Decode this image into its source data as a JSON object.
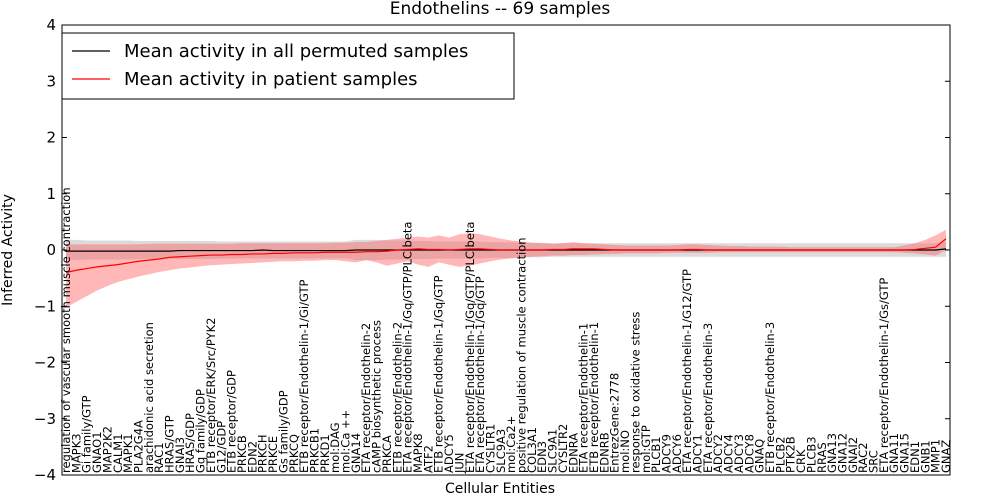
{
  "chart_data": {
    "type": "line",
    "title": "Endothelins -- 69 samples",
    "xlabel": "Cellular Entities",
    "ylabel": "Inferred Activity",
    "ylim": [
      -4,
      4
    ],
    "yticks": [
      -4,
      -3,
      -2,
      -1,
      0,
      1,
      2,
      3,
      4
    ],
    "legend_position": "top-left",
    "grid": false,
    "categories": [
      "regulation of vascular smooth muscle contraction",
      "MAPK3",
      "Gi family/GTP",
      "GNAO1",
      "MAP2K2",
      "CALM1",
      "MAPK1",
      "PLA2G4A",
      "arachidonic acid secretion",
      "RAC1",
      "HRAS/GTP",
      "GNAI3",
      "HRAS/GDP",
      "Gq family/GDP",
      "ETB receptor/ERK/Src/PYK2",
      "G12/GDP",
      "ETB receptor/GDP",
      "PRKCB",
      "EDN2",
      "PRKCH",
      "PRKCE",
      "Gs family/GDP",
      "PRKCQ",
      "ETB receptor/Endothelin-1/Gi/GTP",
      "PRKCB1",
      "PRKD1",
      "mol:DAG",
      "mol:Ca ++",
      "GNA14",
      "ETA receptor/Endothelin-2",
      "cAMP biosynthetic process",
      "PRKCA",
      "ETB receptor/Endothelin-2",
      "ETA receptor/Endothelin-1/Gq/GTP/PLC beta",
      "MAPK8",
      "ATF2",
      "ETB receptor/Endothelin-1/Gq/GTP",
      "ADCY5",
      "JUN",
      "ETA receptor/Endothelin-1/Gq/GTP/PLC beta",
      "ETA receptor/Endothelin-1/Gq/GTP",
      "CYSLTR1",
      "SLC9A3",
      "mol:Ca2+",
      "positive regulation of muscle contraction",
      "COL3A1",
      "EDN3",
      "SLC9A1",
      "CYSLTR2",
      "EDNRA",
      "ETA receptor/Endothelin-1",
      "ETB receptor/Endothelin-1",
      "EDNRB",
      "EntrezGene:2778",
      "mol:NO",
      "response to oxidative stress",
      "mol:GTP",
      "PLCB1",
      "ADCY9",
      "ADCY6",
      "ETA receptor/Endothelin-1/G12/GTP",
      "ADCY1",
      "ETA receptor/Endothelin-3",
      "ADCY2",
      "ADCY4",
      "ADCY3",
      "ADCY8",
      "GNAQ",
      "ETB receptor/Endothelin-3",
      "PLCB2",
      "PTK2B",
      "CRK",
      "PLCB3",
      "RRAS",
      "GNA13",
      "GNA12",
      "GNAI2",
      "RAC2",
      "SRC",
      "ETA receptor/Endothelin-1/Gs/GTP",
      "GNA11",
      "GNA15",
      "EDN1",
      "GNB1",
      "MMP1",
      "GNAZ"
    ],
    "series": [
      {
        "name": "Mean activity in all permuted samples",
        "color": "#000000",
        "values": [
          -0.02,
          -0.02,
          -0.02,
          -0.02,
          -0.02,
          -0.02,
          -0.02,
          -0.02,
          -0.02,
          -0.02,
          -0.02,
          -0.01,
          -0.01,
          -0.01,
          -0.01,
          -0.01,
          -0.01,
          -0.01,
          -0.01,
          0.0,
          -0.01,
          -0.01,
          -0.01,
          -0.01,
          -0.01,
          -0.01,
          -0.01,
          -0.01,
          0.0,
          0.0,
          0.0,
          0.0,
          0.0,
          0.0,
          0.0,
          0.0,
          0.0,
          0.0,
          0.0,
          0.0,
          0.0,
          0.0,
          0.0,
          0.0,
          0.0,
          0.0,
          0.0,
          0.0,
          0.0,
          0.0,
          0.0,
          0.0,
          0.0,
          0.0,
          0.0,
          0.0,
          0.0,
          0.0,
          0.0,
          0.0,
          0.0,
          0.0,
          0.0,
          0.0,
          0.0,
          0.0,
          0.0,
          0.0,
          0.0,
          0.0,
          0.0,
          0.0,
          0.0,
          0.0,
          0.0,
          0.0,
          0.0,
          0.0,
          0.0,
          0.0,
          0.0,
          0.0,
          0.0,
          0.0,
          0.0,
          0.02
        ],
        "band_lower": [
          -0.18,
          -0.18,
          -0.17,
          -0.17,
          -0.17,
          -0.17,
          -0.17,
          -0.16,
          -0.16,
          -0.16,
          -0.16,
          -0.16,
          -0.16,
          -0.16,
          -0.16,
          -0.15,
          -0.15,
          -0.15,
          -0.15,
          -0.15,
          -0.15,
          -0.15,
          -0.15,
          -0.15,
          -0.15,
          -0.15,
          -0.15,
          -0.15,
          -0.18,
          -0.18,
          -0.18,
          -0.17,
          -0.17,
          -0.17,
          -0.16,
          -0.16,
          -0.15,
          -0.15,
          -0.15,
          -0.15,
          -0.15,
          -0.14,
          -0.14,
          -0.14,
          -0.13,
          -0.13,
          -0.13,
          -0.12,
          -0.12,
          -0.12,
          -0.12,
          -0.12,
          -0.12,
          -0.12,
          -0.12,
          -0.12,
          -0.12,
          -0.12,
          -0.12,
          -0.12,
          -0.12,
          -0.12,
          -0.12,
          -0.12,
          -0.12,
          -0.12,
          -0.12,
          -0.12,
          -0.12,
          -0.12,
          -0.12,
          -0.12,
          -0.12,
          -0.12,
          -0.12,
          -0.12,
          -0.12,
          -0.12,
          -0.12,
          -0.12,
          -0.12,
          -0.12,
          -0.12,
          -0.12,
          -0.12,
          -0.12
        ],
        "band_upper": [
          0.18,
          0.18,
          0.17,
          0.17,
          0.17,
          0.17,
          0.17,
          0.16,
          0.16,
          0.16,
          0.16,
          0.16,
          0.16,
          0.16,
          0.16,
          0.15,
          0.15,
          0.15,
          0.15,
          0.15,
          0.15,
          0.15,
          0.15,
          0.15,
          0.15,
          0.15,
          0.15,
          0.15,
          0.18,
          0.18,
          0.18,
          0.17,
          0.17,
          0.17,
          0.16,
          0.16,
          0.15,
          0.15,
          0.15,
          0.15,
          0.15,
          0.14,
          0.14,
          0.14,
          0.13,
          0.13,
          0.13,
          0.12,
          0.12,
          0.12,
          0.12,
          0.12,
          0.12,
          0.12,
          0.12,
          0.12,
          0.12,
          0.12,
          0.12,
          0.12,
          0.12,
          0.12,
          0.12,
          0.12,
          0.12,
          0.12,
          0.12,
          0.12,
          0.12,
          0.12,
          0.12,
          0.12,
          0.12,
          0.12,
          0.12,
          0.12,
          0.12,
          0.12,
          0.12,
          0.12,
          0.12,
          0.12,
          0.12,
          0.12,
          0.12,
          0.15
        ]
      },
      {
        "name": "Mean activity in patient samples",
        "color": "#ff0000",
        "values": [
          -0.4,
          -0.36,
          -0.33,
          -0.3,
          -0.28,
          -0.26,
          -0.23,
          -0.2,
          -0.18,
          -0.16,
          -0.13,
          -0.12,
          -0.11,
          -0.1,
          -0.09,
          -0.09,
          -0.08,
          -0.08,
          -0.07,
          -0.07,
          -0.06,
          -0.06,
          -0.05,
          -0.05,
          -0.05,
          -0.04,
          -0.04,
          -0.04,
          -0.04,
          -0.03,
          -0.03,
          -0.02,
          0.0,
          0.01,
          0.02,
          0.01,
          0.01,
          0.0,
          0.01,
          0.02,
          0.02,
          0.01,
          0.0,
          0.0,
          0.0,
          0.0,
          0.0,
          0.01,
          0.01,
          0.02,
          0.02,
          0.02,
          0.01,
          0.0,
          0.0,
          0.0,
          0.0,
          0.0,
          0.0,
          0.0,
          0.01,
          0.01,
          0.0,
          0.0,
          0.0,
          0.0,
          0.0,
          0.0,
          0.0,
          0.0,
          0.0,
          0.0,
          0.0,
          0.0,
          0.0,
          0.0,
          0.0,
          0.0,
          0.0,
          0.0,
          0.0,
          0.0,
          0.01,
          0.03,
          0.05,
          0.2
        ],
        "band_lower": [
          -1.02,
          -0.92,
          -0.82,
          -0.72,
          -0.64,
          -0.57,
          -0.52,
          -0.47,
          -0.43,
          -0.39,
          -0.36,
          -0.33,
          -0.31,
          -0.29,
          -0.27,
          -0.26,
          -0.25,
          -0.24,
          -0.23,
          -0.22,
          -0.21,
          -0.2,
          -0.2,
          -0.19,
          -0.19,
          -0.18,
          -0.18,
          -0.2,
          -0.22,
          -0.18,
          -0.22,
          -0.28,
          -0.24,
          -0.2,
          -0.26,
          -0.3,
          -0.22,
          -0.26,
          -0.3,
          -0.28,
          -0.24,
          -0.2,
          -0.17,
          -0.15,
          -0.13,
          -0.12,
          -0.11,
          -0.1,
          -0.1,
          -0.09,
          -0.09,
          -0.08,
          -0.07,
          -0.07,
          -0.06,
          -0.06,
          -0.06,
          -0.06,
          -0.05,
          -0.05,
          -0.05,
          -0.05,
          -0.05,
          -0.04,
          -0.04,
          -0.04,
          -0.04,
          -0.04,
          -0.04,
          -0.04,
          -0.04,
          -0.04,
          -0.04,
          -0.04,
          -0.04,
          -0.04,
          -0.04,
          -0.04,
          -0.04,
          -0.04,
          -0.04,
          -0.05,
          -0.06,
          -0.08,
          -0.1,
          0.0
        ],
        "band_upper": [
          0.1,
          0.1,
          0.1,
          0.1,
          0.1,
          0.1,
          0.1,
          0.1,
          0.11,
          0.11,
          0.11,
          0.11,
          0.11,
          0.11,
          0.11,
          0.11,
          0.11,
          0.12,
          0.12,
          0.12,
          0.12,
          0.12,
          0.12,
          0.12,
          0.12,
          0.12,
          0.13,
          0.13,
          0.14,
          0.14,
          0.16,
          0.18,
          0.2,
          0.22,
          0.24,
          0.22,
          0.26,
          0.22,
          0.28,
          0.3,
          0.28,
          0.24,
          0.2,
          0.17,
          0.15,
          0.13,
          0.12,
          0.11,
          0.12,
          0.14,
          0.12,
          0.11,
          0.1,
          0.09,
          0.08,
          0.08,
          0.08,
          0.08,
          0.08,
          0.09,
          0.1,
          0.1,
          0.09,
          0.08,
          0.07,
          0.07,
          0.06,
          0.06,
          0.06,
          0.06,
          0.05,
          0.05,
          0.05,
          0.05,
          0.05,
          0.05,
          0.05,
          0.05,
          0.05,
          0.05,
          0.05,
          0.08,
          0.12,
          0.18,
          0.26,
          0.36
        ]
      }
    ]
  }
}
